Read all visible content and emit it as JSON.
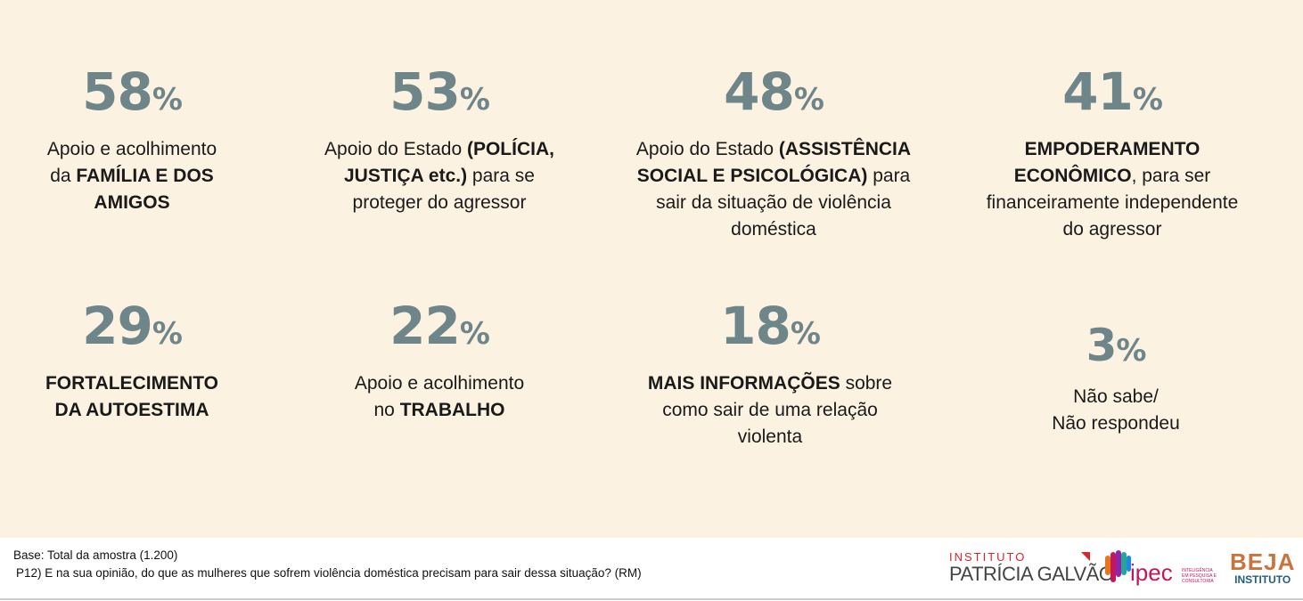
{
  "chart_data": {
    "type": "table",
    "title": "",
    "unit": "%",
    "items": [
      {
        "value": 58,
        "label": "58",
        "segments": [
          {
            "t": "Apoio e acolhimento\nda ",
            "b": false
          },
          {
            "t": "FAMÍLIA E DOS\nAMIGOS",
            "b": true
          }
        ]
      },
      {
        "value": 53,
        "label": "53",
        "segments": [
          {
            "t": "Apoio do Estado ",
            "b": false
          },
          {
            "t": "(POLÍCIA,\nJUSTIÇA etc.)",
            "b": true
          },
          {
            "t": " para se\nproteger do agressor",
            "b": false
          }
        ]
      },
      {
        "value": 48,
        "label": "48",
        "segments": [
          {
            "t": "Apoio do Estado ",
            "b": false
          },
          {
            "t": "(ASSISTÊNCIA\nSOCIAL E PSICOLÓGICA)",
            "b": true
          },
          {
            "t": " para\nsair da situação de violência\ndoméstica",
            "b": false
          }
        ]
      },
      {
        "value": 41,
        "label": "41",
        "segments": [
          {
            "t": "EMPODERAMENTO\nECONÔMICO",
            "b": true
          },
          {
            "t": ", para ser\nfinanceiramente independente\ndo agressor",
            "b": false
          }
        ]
      },
      {
        "value": 29,
        "label": "29",
        "segments": [
          {
            "t": "FORTALECIMENTO\nDA AUTOESTIMA",
            "b": true
          }
        ]
      },
      {
        "value": 22,
        "label": "22",
        "segments": [
          {
            "t": "Apoio e acolhimento\nno ",
            "b": false
          },
          {
            "t": "TRABALHO",
            "b": true
          }
        ]
      },
      {
        "value": 18,
        "label": "18",
        "segments": [
          {
            "t": "MAIS INFORMAÇÕES",
            "b": true
          },
          {
            "t": " sobre\ncomo sair de uma relação\nviolenta",
            "b": false
          }
        ]
      },
      {
        "value": 3,
        "label": "3",
        "segments": [
          {
            "t": "Não sabe/\nNão respondeu",
            "b": false
          }
        ]
      }
    ]
  },
  "percent_sign": "%",
  "footer": {
    "base": "Base: Total da amostra (1.200)",
    "question": "P12) E na sua opinião, do que as mulheres que sofrem violência doméstica precisam para sair dessa situação? (RM)"
  },
  "logos": {
    "patricia_top": "INSTITUTO",
    "patricia_name": "PATRÍCIA GALVÃO",
    "ipec_name": "ipec",
    "ipec_tagline": "INTELIGÊNCIA EM PESQUISA E CONSULTORIA",
    "beja_name": "BEJA",
    "beja_sub": "INSTITUTO"
  },
  "colors": {
    "background": "#fcf2e1",
    "number": "#6e858a"
  }
}
